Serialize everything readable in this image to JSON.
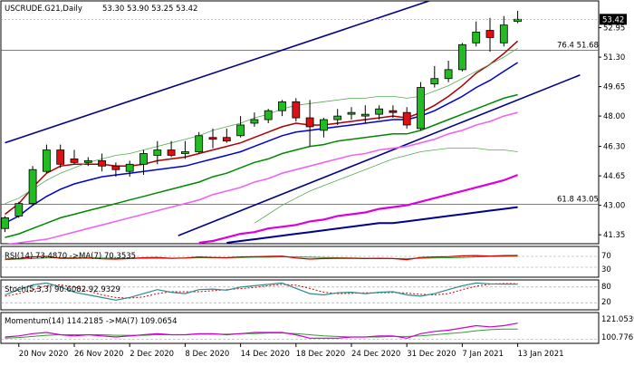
{
  "header": {
    "symbol": "USCRUDE.G21,Daily",
    "ohlc": "53.30 53.90 53.25 53.42"
  },
  "price_axis": {
    "ticks": [
      {
        "label": "52.95",
        "value": 52.95
      },
      {
        "label": "51.30",
        "value": 51.3
      },
      {
        "label": "49.65",
        "value": 49.65
      },
      {
        "label": "48.00",
        "value": 48.0
      },
      {
        "label": "46.30",
        "value": 46.3
      },
      {
        "label": "44.65",
        "value": 44.65
      },
      {
        "label": "43.00",
        "value": 43.0
      },
      {
        "label": "41.35",
        "value": 41.35
      }
    ],
    "current_price": "53.42"
  },
  "x_axis": {
    "labels": [
      "20 Nov 2020",
      "26 Nov 2020",
      "2 Dec 2020",
      "8 Dec 2020",
      "14 Dec 2020",
      "18 Dec 2020",
      "24 Dec 2020",
      "31 Dec 2020",
      "7 Jan 2021",
      "13 Jan 2021"
    ]
  },
  "fib_levels": [
    {
      "label": "76.4 51.68",
      "value": 51.68
    },
    {
      "label": "61.8 43.05",
      "value": 43.05
    }
  ],
  "panels": {
    "rsi": {
      "label": "RSI(14) 73.4870  ->MA(7) 70.3535",
      "ticks": [
        "70",
        "30"
      ]
    },
    "stoch": {
      "label": "Stoch(5,3,3) 90.6082 92.9329",
      "ticks": [
        "80",
        "20"
      ]
    },
    "momentum": {
      "label": "Momentum(14) 114.2185  ->MA(7) 109.0654",
      "ticks": [
        "121.0539",
        "100.7767"
      ]
    }
  },
  "colors": {
    "bull": "#22bb22",
    "bear": "#dd1111",
    "ma_red": "#aa0000",
    "ma_blue": "#0000cc",
    "ma_green": "#008800",
    "ma_lightgreen": "#55aa55",
    "ma_pink": "#ee66ee",
    "ma_magenta": "#dd00dd",
    "ma_navy": "#000088",
    "channel": "#000088",
    "rsi_line": "#cc0000",
    "rsi_ma": "#339933",
    "stoch_main": "#2e8b8b",
    "stoch_signal": "#cc0000",
    "mom_main": "#cc00cc",
    "mom_ma": "#339933"
  },
  "chart_data": {
    "type": "candlestick",
    "x": [
      "19 Nov 2020",
      "20 Nov 2020",
      "23 Nov 2020",
      "24 Nov 2020",
      "25 Nov 2020",
      "26 Nov 2020",
      "27 Nov 2020",
      "30 Nov 2020",
      "1 Dec 2020",
      "2 Dec 2020",
      "3 Dec 2020",
      "4 Dec 2020",
      "7 Dec 2020",
      "8 Dec 2020",
      "9 Dec 2020",
      "10 Dec 2020",
      "11 Dec 2020",
      "14 Dec 2020",
      "15 Dec 2020",
      "16 Dec 2020",
      "17 Dec 2020",
      "18 Dec 2020",
      "21 Dec 2020",
      "22 Dec 2020",
      "23 Dec 2020",
      "24 Dec 2020",
      "28 Dec 2020",
      "29 Dec 2020",
      "30 Dec 2020",
      "31 Dec 2020",
      "4 Jan 2021",
      "5 Jan 2021",
      "6 Jan 2021",
      "7 Jan 2021",
      "8 Jan 2021",
      "11 Jan 2021",
      "12 Jan 2021",
      "13 Jan 2021"
    ],
    "open": [
      41.7,
      42.4,
      43.1,
      44.9,
      46.1,
      45.6,
      45.4,
      45.5,
      45.2,
      44.9,
      45.3,
      45.8,
      46.1,
      45.9,
      46.0,
      46.8,
      46.8,
      46.9,
      47.6,
      47.8,
      48.3,
      48.8,
      47.9,
      47.2,
      47.8,
      48.1,
      48.0,
      48.1,
      48.3,
      48.2,
      47.3,
      49.8,
      50.1,
      50.6,
      52.1,
      52.8,
      52.1,
      53.3
    ],
    "high": [
      42.4,
      43.2,
      45.2,
      46.4,
      46.4,
      46.1,
      45.7,
      45.9,
      45.4,
      45.5,
      46.1,
      46.6,
      46.6,
      46.6,
      47.1,
      47.3,
      47.3,
      48.0,
      48.2,
      48.4,
      48.9,
      49.0,
      48.9,
      47.9,
      48.4,
      48.5,
      48.6,
      48.6,
      48.6,
      48.5,
      49.9,
      50.8,
      51.1,
      52.1,
      53.3,
      53.5,
      53.6,
      53.9
    ],
    "low": [
      41.5,
      42.3,
      43.0,
      44.8,
      45.1,
      45.3,
      45.2,
      44.9,
      44.6,
      44.6,
      44.7,
      45.3,
      45.7,
      45.6,
      45.9,
      46.2,
      46.5,
      46.8,
      47.4,
      47.6,
      48.0,
      47.7,
      46.3,
      46.8,
      47.5,
      47.8,
      47.6,
      47.8,
      47.9,
      47.3,
      47.2,
      49.6,
      49.9,
      50.5,
      51.9,
      51.6,
      51.9,
      53.2
    ],
    "close": [
      42.3,
      43.1,
      45.0,
      46.1,
      45.3,
      45.4,
      45.5,
      45.2,
      45.0,
      45.3,
      45.9,
      46.1,
      45.8,
      46.0,
      46.9,
      46.7,
      46.6,
      47.5,
      47.8,
      48.3,
      48.8,
      47.9,
      47.4,
      47.8,
      48.0,
      48.2,
      48.1,
      48.4,
      48.2,
      47.5,
      49.6,
      50.1,
      50.6,
      52.0,
      52.7,
      52.4,
      53.1,
      53.42
    ],
    "ylim": [
      40.9,
      54.4
    ],
    "series": [
      {
        "key": "ma_red",
        "values": [
          42.5,
          43.1,
          44.0,
          44.8,
          45.2,
          45.3,
          45.3,
          45.3,
          45.2,
          45.2,
          45.3,
          45.5,
          45.6,
          45.7,
          45.9,
          46.1,
          46.3,
          46.5,
          46.8,
          47.1,
          47.4,
          47.6,
          47.5,
          47.5,
          47.6,
          47.7,
          47.8,
          47.9,
          48.0,
          47.9,
          48.2,
          48.6,
          49.1,
          49.7,
          50.4,
          50.9,
          51.5,
          52.2
        ]
      },
      {
        "key": "ma_blue",
        "values": [
          42.0,
          42.4,
          43.0,
          43.5,
          43.9,
          44.2,
          44.4,
          44.6,
          44.7,
          44.8,
          44.9,
          45.0,
          45.1,
          45.2,
          45.4,
          45.6,
          45.8,
          46.0,
          46.3,
          46.6,
          46.9,
          47.1,
          47.2,
          47.3,
          47.4,
          47.5,
          47.6,
          47.7,
          47.8,
          47.8,
          48.0,
          48.3,
          48.7,
          49.1,
          49.6,
          50.0,
          50.5,
          51.0
        ]
      },
      {
        "key": "ma_lightgreen",
        "values": [
          43.1,
          43.4,
          43.9,
          44.4,
          44.8,
          45.1,
          45.4,
          45.6,
          45.8,
          45.9,
          46.1,
          46.3,
          46.5,
          46.7,
          46.9,
          47.2,
          47.4,
          47.6,
          47.9,
          48.1,
          48.4,
          48.6,
          48.7,
          48.8,
          48.9,
          49.0,
          49.0,
          49.1,
          49.1,
          49.0,
          49.1,
          49.4,
          49.7,
          50.1,
          50.5,
          50.9,
          51.3,
          51.8
        ]
      },
      {
        "key": "ma_green",
        "values": [
          41.2,
          41.4,
          41.7,
          42.0,
          42.3,
          42.5,
          42.7,
          42.9,
          43.1,
          43.3,
          43.5,
          43.7,
          43.9,
          44.1,
          44.3,
          44.6,
          44.8,
          45.1,
          45.4,
          45.6,
          45.9,
          46.1,
          46.3,
          46.4,
          46.6,
          46.7,
          46.8,
          46.9,
          47.0,
          47.0,
          47.2,
          47.5,
          47.8,
          48.1,
          48.4,
          48.7,
          49.0,
          49.2
        ]
      },
      {
        "key": "ma_pink",
        "values": [
          40.8,
          40.9,
          41.0,
          41.1,
          41.3,
          41.5,
          41.7,
          41.9,
          42.1,
          42.3,
          42.5,
          42.7,
          42.9,
          43.1,
          43.3,
          43.6,
          43.8,
          44.0,
          44.3,
          44.5,
          44.8,
          45.0,
          45.2,
          45.4,
          45.6,
          45.8,
          45.9,
          46.1,
          46.2,
          46.3,
          46.5,
          46.7,
          47.0,
          47.2,
          47.5,
          47.7,
          48.0,
          48.2
        ]
      },
      {
        "key": "ma_thin_green",
        "values": [
          null,
          null,
          null,
          null,
          null,
          null,
          null,
          null,
          null,
          null,
          null,
          null,
          null,
          null,
          null,
          null,
          null,
          null,
          42.0,
          42.5,
          43.0,
          43.4,
          43.8,
          44.1,
          44.4,
          44.7,
          45.0,
          45.3,
          45.6,
          45.8,
          46.0,
          46.1,
          46.2,
          46.2,
          46.2,
          46.1,
          46.1,
          46.0
        ]
      },
      {
        "key": "ma_magenta",
        "values": [
          null,
          null,
          null,
          null,
          null,
          null,
          null,
          null,
          null,
          null,
          null,
          null,
          null,
          null,
          40.9,
          41.0,
          41.2,
          41.4,
          41.5,
          41.7,
          41.8,
          41.9,
          42.1,
          42.2,
          42.4,
          42.5,
          42.6,
          42.8,
          42.9,
          43.0,
          43.2,
          43.4,
          43.6,
          43.8,
          44.0,
          44.2,
          44.4,
          44.7
        ]
      },
      {
        "key": "ma_navy",
        "values": [
          null,
          null,
          null,
          null,
          null,
          null,
          null,
          null,
          null,
          null,
          null,
          null,
          null,
          null,
          null,
          null,
          40.9,
          41.0,
          41.1,
          41.2,
          41.3,
          41.4,
          41.5,
          41.6,
          41.7,
          41.8,
          41.9,
          42.0,
          42.0,
          42.1,
          42.2,
          42.3,
          42.4,
          42.5,
          42.6,
          42.7,
          42.8,
          42.9
        ]
      }
    ],
    "channel": {
      "upper": {
        "from": {
          "i": 0,
          "value": 46.5
        },
        "to": {
          "i": 38.5,
          "value": 56.5
        }
      },
      "lower": {
        "from": {
          "i": 12.5,
          "value": 41.3
        },
        "to": {
          "i": 41.5,
          "value": 50.3
        }
      }
    },
    "rsi": {
      "values": [
        60,
        62,
        68,
        70,
        63,
        63,
        64,
        61,
        60,
        62,
        65,
        66,
        63,
        64,
        68,
        66,
        65,
        68,
        69,
        70,
        71,
        64,
        60,
        62,
        63,
        63,
        62,
        63,
        62,
        58,
        66,
        68,
        69,
        72,
        73,
        71,
        73,
        73.49
      ],
      "ma": [
        58,
        60,
        62,
        64,
        65,
        65,
        65,
        64,
        63,
        63,
        63,
        63,
        63,
        64,
        65,
        65,
        65,
        66,
        67,
        67,
        68,
        68,
        67,
        66,
        65,
        64,
        63,
        62,
        62,
        62,
        63,
        64,
        65,
        66,
        68,
        70,
        70,
        70.35
      ],
      "range": [
        0,
        100
      ]
    },
    "stoch": {
      "values": [
        50,
        70,
        88,
        95,
        80,
        60,
        50,
        40,
        30,
        40,
        55,
        70,
        60,
        55,
        70,
        72,
        68,
        80,
        85,
        90,
        95,
        75,
        55,
        50,
        58,
        60,
        55,
        60,
        62,
        50,
        45,
        55,
        70,
        85,
        95,
        92,
        91,
        90.61
      ],
      "signal": [
        45,
        55,
        70,
        85,
        88,
        80,
        65,
        50,
        40,
        38,
        42,
        55,
        62,
        62,
        62,
        66,
        70,
        74,
        78,
        85,
        90,
        87,
        75,
        60,
        55,
        56,
        58,
        58,
        59,
        57,
        52,
        50,
        55,
        70,
        83,
        91,
        93,
        92.93
      ],
      "range": [
        0,
        100
      ]
    },
    "momentum": {
      "values": [
        102,
        103,
        105,
        106,
        104,
        103,
        104,
        103,
        102,
        103,
        104,
        105,
        104,
        104,
        105,
        105,
        104,
        105,
        106,
        106,
        106,
        104,
        101,
        101,
        101,
        102,
        102,
        103,
        103,
        101,
        105,
        107,
        108,
        110,
        112,
        111,
        112,
        114.22
      ],
      "ma": [
        101,
        101.5,
        102.5,
        103.5,
        104,
        104,
        104,
        104,
        103.5,
        103.5,
        103.5,
        104,
        104,
        104,
        104.5,
        104.5,
        104.5,
        105,
        105,
        105.5,
        105.5,
        105,
        104,
        103,
        102.5,
        102,
        102,
        102,
        102.5,
        102.5,
        103,
        104,
        105,
        106,
        107.5,
        108.5,
        109,
        109.07
      ],
      "ylim": [
        98,
        122
      ]
    }
  }
}
